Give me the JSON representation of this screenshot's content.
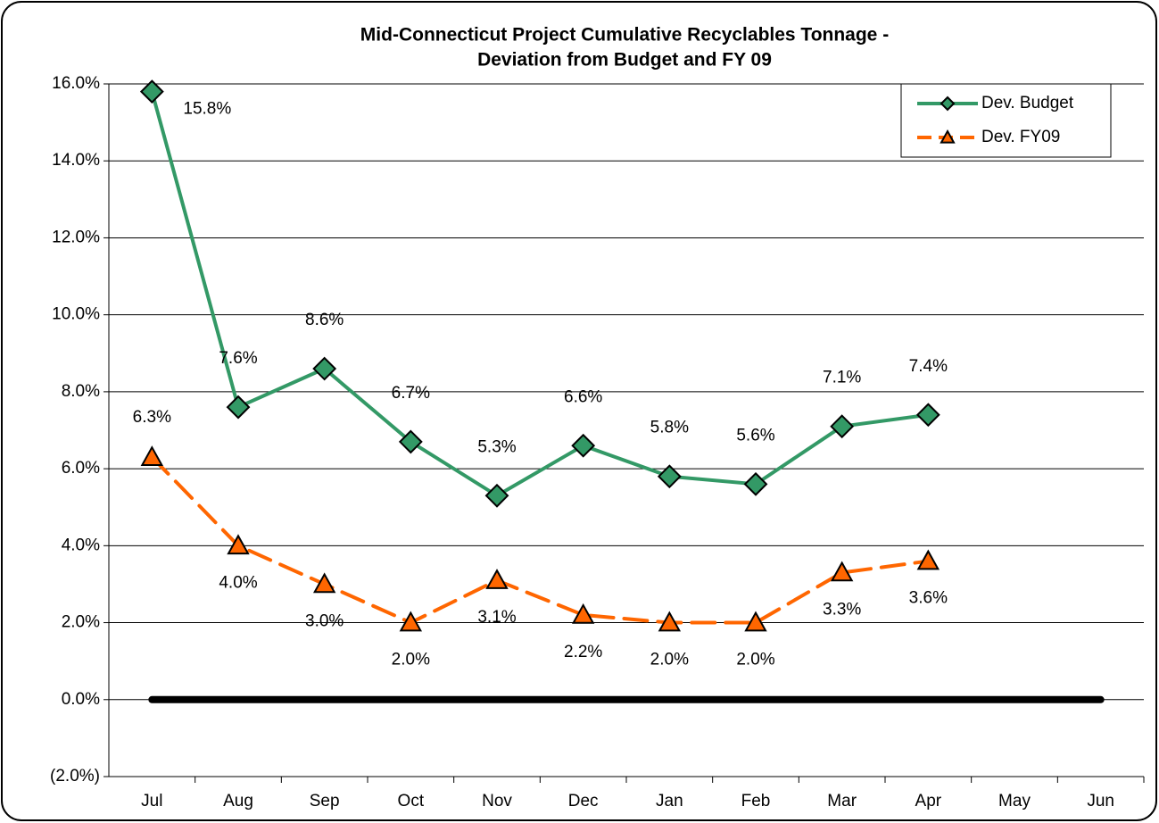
{
  "chart_data": {
    "type": "line",
    "title": [
      "Mid-Connecticut Project Cumulative Recyclables Tonnage -",
      "Deviation from Budget and FY 09"
    ],
    "categories": [
      "Jul",
      "Aug",
      "Sep",
      "Oct",
      "Nov",
      "Dec",
      "Jan",
      "Feb",
      "Mar",
      "Apr",
      "May",
      "Jun"
    ],
    "series": [
      {
        "name": "Dev. Budget",
        "color": "#339966",
        "marker": "diamond",
        "dash": false,
        "values": [
          15.8,
          7.6,
          8.6,
          6.7,
          5.3,
          6.6,
          5.8,
          5.6,
          7.1,
          7.4,
          null,
          null
        ],
        "value_labels": [
          "15.8%",
          "7.6%",
          "8.6%",
          "6.7%",
          "5.3%",
          "6.6%",
          "5.8%",
          "5.6%",
          "7.1%",
          "7.4%",
          null,
          null
        ]
      },
      {
        "name": "Dev. FY09",
        "color": "#ff6600",
        "marker": "triangle",
        "dash": true,
        "values": [
          6.3,
          4.0,
          3.0,
          2.0,
          3.1,
          2.2,
          2.0,
          2.0,
          3.3,
          3.6,
          null,
          null
        ],
        "value_labels": [
          "6.3%",
          "4.0%",
          "3.0%",
          "2.0%",
          "3.1%",
          "2.2%",
          "2.0%",
          "2.0%",
          "3.3%",
          "3.6%",
          null,
          null
        ]
      },
      {
        "color": "#000000",
        "marker": "none",
        "dash": false,
        "values": [
          0,
          0,
          0,
          0,
          0,
          0,
          0,
          0,
          0,
          0,
          0,
          0
        ]
      }
    ],
    "ylim": [
      -2,
      16
    ],
    "yticks": [
      {
        "value": -2,
        "label": "(2.0%)"
      },
      {
        "value": 0,
        "label": "0.0%"
      },
      {
        "value": 2,
        "label": "2.0%"
      },
      {
        "value": 4,
        "label": "4.0%"
      },
      {
        "value": 6,
        "label": "6.0%"
      },
      {
        "value": 8,
        "label": "8.0%"
      },
      {
        "value": 10,
        "label": "10.0%"
      },
      {
        "value": 12,
        "label": "12.0%"
      },
      {
        "value": 14,
        "label": "14.0%"
      },
      {
        "value": 16,
        "label": "16.0%"
      }
    ],
    "grid": true,
    "legend": "top-right"
  }
}
